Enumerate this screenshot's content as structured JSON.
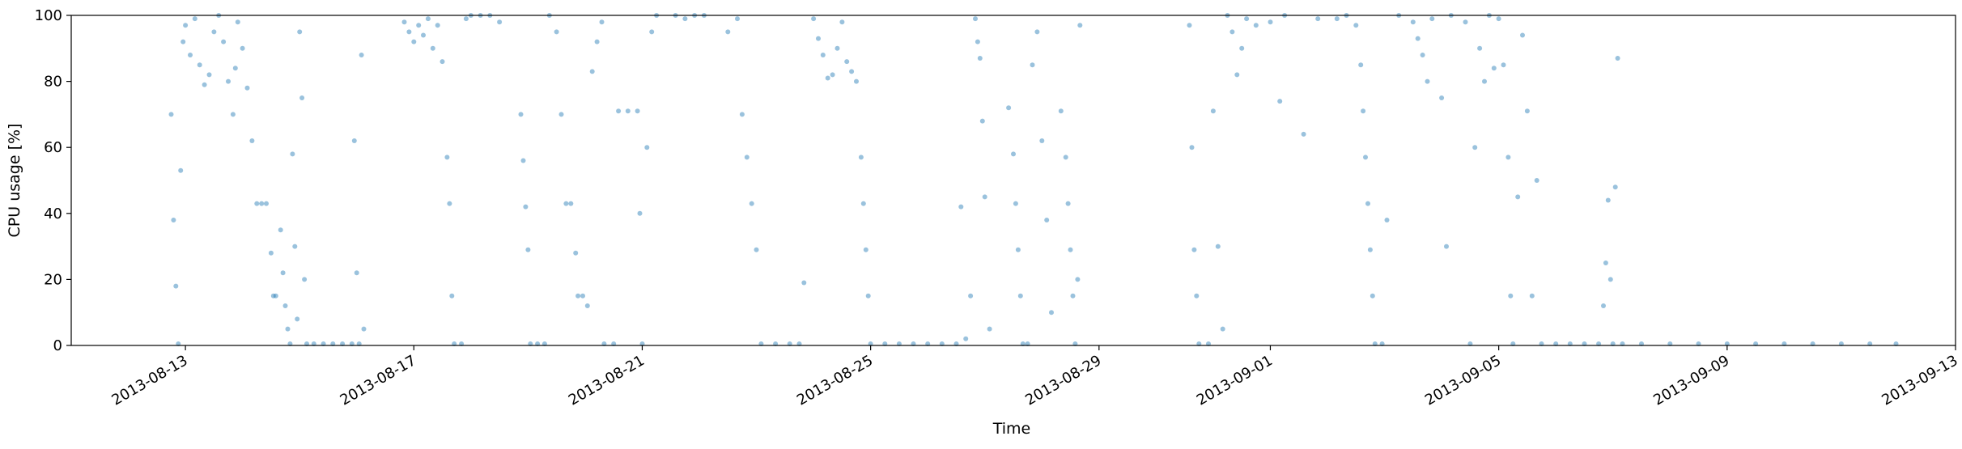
{
  "chart_data": {
    "type": "scatter",
    "title": "",
    "xlabel": "Time",
    "ylabel": "CPU usage [%]",
    "xlim": [
      "2013-08-11T00:00",
      "2013-09-13T00:00"
    ],
    "ylim": [
      0,
      100
    ],
    "grid": false,
    "legend": "none",
    "x_ticks": [
      "2013-08-13",
      "2013-08-17",
      "2013-08-21",
      "2013-08-25",
      "2013-08-29",
      "2013-09-01",
      "2013-09-05",
      "2013-09-09",
      "2013-09-13"
    ],
    "y_ticks": [
      0,
      20,
      40,
      60,
      80,
      100
    ],
    "marker_color": "#1f77b4",
    "marker_alpha": 0.45,
    "series": [
      {
        "values_note": "",
        "points": [
          [
            "2013-08-12T18:00",
            70
          ],
          [
            "2013-08-12T19:00",
            38
          ],
          [
            "2013-08-12T20:00",
            18
          ],
          [
            "2013-08-12T21:00",
            0.5
          ],
          [
            "2013-08-12T22:00",
            53
          ],
          [
            "2013-08-12T23:00",
            92
          ],
          [
            "2013-08-13T00:00",
            97
          ],
          [
            "2013-08-13T02:00",
            88
          ],
          [
            "2013-08-13T04:00",
            99
          ],
          [
            "2013-08-13T06:00",
            85
          ],
          [
            "2013-08-13T08:00",
            79
          ],
          [
            "2013-08-13T10:00",
            82
          ],
          [
            "2013-08-13T12:00",
            95
          ],
          [
            "2013-08-13T14:00",
            100
          ],
          [
            "2013-08-13T16:00",
            92
          ],
          [
            "2013-08-13T18:00",
            80
          ],
          [
            "2013-08-13T20:00",
            70
          ],
          [
            "2013-08-13T21:00",
            84
          ],
          [
            "2013-08-13T22:00",
            98
          ],
          [
            "2013-08-14T00:00",
            90
          ],
          [
            "2013-08-14T02:00",
            78
          ],
          [
            "2013-08-14T04:00",
            62
          ],
          [
            "2013-08-14T06:00",
            43
          ],
          [
            "2013-08-14T08:00",
            43
          ],
          [
            "2013-08-14T10:00",
            43
          ],
          [
            "2013-08-14T12:00",
            28
          ],
          [
            "2013-08-14T13:00",
            15
          ],
          [
            "2013-08-14T14:00",
            15
          ],
          [
            "2013-08-14T16:00",
            35
          ],
          [
            "2013-08-14T17:00",
            22
          ],
          [
            "2013-08-14T18:00",
            12
          ],
          [
            "2013-08-14T19:00",
            5
          ],
          [
            "2013-08-14T20:00",
            0.5
          ],
          [
            "2013-08-14T21:00",
            58
          ],
          [
            "2013-08-14T22:00",
            30
          ],
          [
            "2013-08-14T23:00",
            8
          ],
          [
            "2013-08-15T00:00",
            95
          ],
          [
            "2013-08-15T01:00",
            75
          ],
          [
            "2013-08-15T02:00",
            20
          ],
          [
            "2013-08-15T03:00",
            0.5
          ],
          [
            "2013-08-15T06:00",
            0.5
          ],
          [
            "2013-08-15T10:00",
            0.5
          ],
          [
            "2013-08-15T14:00",
            0.5
          ],
          [
            "2013-08-15T18:00",
            0.5
          ],
          [
            "2013-08-15T22:00",
            0.5
          ],
          [
            "2013-08-16T01:00",
            0.5
          ],
          [
            "2013-08-15T23:00",
            62
          ],
          [
            "2013-08-16T00:00",
            22
          ],
          [
            "2013-08-16T02:00",
            88
          ],
          [
            "2013-08-16T03:00",
            5
          ],
          [
            "2013-08-16T20:00",
            98
          ],
          [
            "2013-08-16T22:00",
            95
          ],
          [
            "2013-08-17T00:00",
            92
          ],
          [
            "2013-08-17T02:00",
            97
          ],
          [
            "2013-08-17T04:00",
            94
          ],
          [
            "2013-08-17T06:00",
            99
          ],
          [
            "2013-08-17T08:00",
            90
          ],
          [
            "2013-08-17T10:00",
            97
          ],
          [
            "2013-08-17T12:00",
            86
          ],
          [
            "2013-08-17T14:00",
            57
          ],
          [
            "2013-08-17T15:00",
            43
          ],
          [
            "2013-08-17T16:00",
            15
          ],
          [
            "2013-08-17T17:00",
            0.5
          ],
          [
            "2013-08-17T20:00",
            0.5
          ],
          [
            "2013-08-17T22:00",
            99
          ],
          [
            "2013-08-18T00:00",
            100
          ],
          [
            "2013-08-18T04:00",
            100
          ],
          [
            "2013-08-18T08:00",
            100
          ],
          [
            "2013-08-18T12:00",
            98
          ],
          [
            "2013-08-18T21:00",
            70
          ],
          [
            "2013-08-18T22:00",
            56
          ],
          [
            "2013-08-18T23:00",
            42
          ],
          [
            "2013-08-19T00:00",
            29
          ],
          [
            "2013-08-19T01:00",
            0.5
          ],
          [
            "2013-08-19T04:00",
            0.5
          ],
          [
            "2013-08-19T07:00",
            0.5
          ],
          [
            "2013-08-19T09:00",
            100
          ],
          [
            "2013-08-19T12:00",
            95
          ],
          [
            "2013-08-19T14:00",
            70
          ],
          [
            "2013-08-19T16:00",
            43
          ],
          [
            "2013-08-19T18:00",
            43
          ],
          [
            "2013-08-19T20:00",
            28
          ],
          [
            "2013-08-19T21:00",
            15
          ],
          [
            "2013-08-19T23:00",
            15
          ],
          [
            "2013-08-20T01:00",
            12
          ],
          [
            "2013-08-20T03:00",
            83
          ],
          [
            "2013-08-20T05:00",
            92
          ],
          [
            "2013-08-20T07:00",
            98
          ],
          [
            "2013-08-20T08:00",
            0.5
          ],
          [
            "2013-08-20T12:00",
            0.5
          ],
          [
            "2013-08-20T14:00",
            71
          ],
          [
            "2013-08-20T18:00",
            71
          ],
          [
            "2013-08-20T22:00",
            71
          ],
          [
            "2013-08-20T23:00",
            40
          ],
          [
            "2013-08-21T00:00",
            0.5
          ],
          [
            "2013-08-21T02:00",
            60
          ],
          [
            "2013-08-21T04:00",
            95
          ],
          [
            "2013-08-21T06:00",
            100
          ],
          [
            "2013-08-21T14:00",
            100
          ],
          [
            "2013-08-21T18:00",
            99
          ],
          [
            "2013-08-21T22:00",
            100
          ],
          [
            "2013-08-22T02:00",
            100
          ],
          [
            "2013-08-22T12:00",
            95
          ],
          [
            "2013-08-22T16:00",
            99
          ],
          [
            "2013-08-22T18:00",
            70
          ],
          [
            "2013-08-22T20:00",
            57
          ],
          [
            "2013-08-22T22:00",
            43
          ],
          [
            "2013-08-23T00:00",
            29
          ],
          [
            "2013-08-23T02:00",
            0.5
          ],
          [
            "2013-08-23T08:00",
            0.5
          ],
          [
            "2013-08-23T14:00",
            0.5
          ],
          [
            "2013-08-23T18:00",
            0.5
          ],
          [
            "2013-08-23T20:00",
            19
          ],
          [
            "2013-08-24T00:00",
            99
          ],
          [
            "2013-08-24T02:00",
            93
          ],
          [
            "2013-08-24T04:00",
            88
          ],
          [
            "2013-08-24T06:00",
            81
          ],
          [
            "2013-08-24T08:00",
            82
          ],
          [
            "2013-08-24T10:00",
            90
          ],
          [
            "2013-08-24T12:00",
            98
          ],
          [
            "2013-08-24T14:00",
            86
          ],
          [
            "2013-08-24T16:00",
            83
          ],
          [
            "2013-08-24T18:00",
            80
          ],
          [
            "2013-08-24T20:00",
            57
          ],
          [
            "2013-08-24T21:00",
            43
          ],
          [
            "2013-08-24T22:00",
            29
          ],
          [
            "2013-08-24T23:00",
            15
          ],
          [
            "2013-08-25T00:00",
            0.5
          ],
          [
            "2013-08-25T06:00",
            0.5
          ],
          [
            "2013-08-25T12:00",
            0.5
          ],
          [
            "2013-08-25T18:00",
            0.5
          ],
          [
            "2013-08-26T00:00",
            0.5
          ],
          [
            "2013-08-26T06:00",
            0.5
          ],
          [
            "2013-08-26T12:00",
            0.5
          ],
          [
            "2013-08-26T14:00",
            42
          ],
          [
            "2013-08-26T16:00",
            2
          ],
          [
            "2013-08-26T18:00",
            15
          ],
          [
            "2013-08-26T20:00",
            99
          ],
          [
            "2013-08-26T21:00",
            92
          ],
          [
            "2013-08-26T22:00",
            87
          ],
          [
            "2013-08-26T23:00",
            68
          ],
          [
            "2013-08-27T00:00",
            45
          ],
          [
            "2013-08-27T02:00",
            5
          ],
          [
            "2013-08-27T10:00",
            72
          ],
          [
            "2013-08-27T12:00",
            58
          ],
          [
            "2013-08-27T13:00",
            43
          ],
          [
            "2013-08-27T14:00",
            29
          ],
          [
            "2013-08-27T15:00",
            15
          ],
          [
            "2013-08-27T16:00",
            0.5
          ],
          [
            "2013-08-27T18:00",
            0.5
          ],
          [
            "2013-08-27T20:00",
            85
          ],
          [
            "2013-08-27T22:00",
            95
          ],
          [
            "2013-08-28T00:00",
            62
          ],
          [
            "2013-08-28T02:00",
            38
          ],
          [
            "2013-08-28T04:00",
            10
          ],
          [
            "2013-08-28T08:00",
            71
          ],
          [
            "2013-08-28T10:00",
            57
          ],
          [
            "2013-08-28T11:00",
            43
          ],
          [
            "2013-08-28T12:00",
            29
          ],
          [
            "2013-08-28T13:00",
            15
          ],
          [
            "2013-08-28T14:00",
            0.5
          ],
          [
            "2013-08-28T15:00",
            20
          ],
          [
            "2013-08-28T16:00",
            97
          ],
          [
            "2013-08-30T14:00",
            97
          ],
          [
            "2013-08-30T15:00",
            60
          ],
          [
            "2013-08-30T16:00",
            29
          ],
          [
            "2013-08-30T17:00",
            15
          ],
          [
            "2013-08-30T18:00",
            0.5
          ],
          [
            "2013-08-30T22:00",
            0.5
          ],
          [
            "2013-08-31T00:00",
            71
          ],
          [
            "2013-08-31T02:00",
            30
          ],
          [
            "2013-08-31T04:00",
            5
          ],
          [
            "2013-08-31T06:00",
            100
          ],
          [
            "2013-08-31T08:00",
            95
          ],
          [
            "2013-08-31T10:00",
            82
          ],
          [
            "2013-08-31T12:00",
            90
          ],
          [
            "2013-08-31T14:00",
            99
          ],
          [
            "2013-08-31T18:00",
            97
          ],
          [
            "2013-09-01T00:00",
            98
          ],
          [
            "2013-09-01T04:00",
            74
          ],
          [
            "2013-09-01T06:00",
            100
          ],
          [
            "2013-09-01T14:00",
            64
          ],
          [
            "2013-09-01T20:00",
            99
          ],
          [
            "2013-09-02T04:00",
            99
          ],
          [
            "2013-09-02T08:00",
            100
          ],
          [
            "2013-09-02T12:00",
            97
          ],
          [
            "2013-09-02T14:00",
            85
          ],
          [
            "2013-09-02T15:00",
            71
          ],
          [
            "2013-09-02T16:00",
            57
          ],
          [
            "2013-09-02T17:00",
            43
          ],
          [
            "2013-09-02T18:00",
            29
          ],
          [
            "2013-09-02T19:00",
            15
          ],
          [
            "2013-09-02T20:00",
            0.5
          ],
          [
            "2013-09-02T23:00",
            0.5
          ],
          [
            "2013-09-03T01:00",
            38
          ],
          [
            "2013-09-03T06:00",
            100
          ],
          [
            "2013-09-03T12:00",
            98
          ],
          [
            "2013-09-03T14:00",
            93
          ],
          [
            "2013-09-03T16:00",
            88
          ],
          [
            "2013-09-03T18:00",
            80
          ],
          [
            "2013-09-03T20:00",
            99
          ],
          [
            "2013-09-04T00:00",
            75
          ],
          [
            "2013-09-04T02:00",
            30
          ],
          [
            "2013-09-04T04:00",
            100
          ],
          [
            "2013-09-04T10:00",
            98
          ],
          [
            "2013-09-04T12:00",
            0.5
          ],
          [
            "2013-09-04T14:00",
            60
          ],
          [
            "2013-09-04T16:00",
            90
          ],
          [
            "2013-09-04T18:00",
            80
          ],
          [
            "2013-09-04T20:00",
            100
          ],
          [
            "2013-09-04T22:00",
            84
          ],
          [
            "2013-09-05T00:00",
            99
          ],
          [
            "2013-09-05T02:00",
            85
          ],
          [
            "2013-09-05T04:00",
            57
          ],
          [
            "2013-09-05T05:00",
            15
          ],
          [
            "2013-09-05T06:00",
            0.5
          ],
          [
            "2013-09-05T08:00",
            45
          ],
          [
            "2013-09-05T10:00",
            94
          ],
          [
            "2013-09-05T12:00",
            71
          ],
          [
            "2013-09-05T14:00",
            15
          ],
          [
            "2013-09-05T16:00",
            50
          ],
          [
            "2013-09-05T18:00",
            0.5
          ],
          [
            "2013-09-06T00:00",
            0.5
          ],
          [
            "2013-09-06T06:00",
            0.5
          ],
          [
            "2013-09-06T12:00",
            0.5
          ],
          [
            "2013-09-06T18:00",
            0.5
          ],
          [
            "2013-09-06T20:00",
            12
          ],
          [
            "2013-09-06T21:00",
            25
          ],
          [
            "2013-09-06T22:00",
            44
          ],
          [
            "2013-09-06T23:00",
            20
          ],
          [
            "2013-09-07T00:00",
            0.5
          ],
          [
            "2013-09-07T01:00",
            48
          ],
          [
            "2013-09-07T02:00",
            87
          ],
          [
            "2013-09-07T04:00",
            0.5
          ],
          [
            "2013-09-07T12:00",
            0.5
          ],
          [
            "2013-09-08T00:00",
            0.5
          ],
          [
            "2013-09-08T12:00",
            0.5
          ],
          [
            "2013-09-09T00:00",
            0.5
          ],
          [
            "2013-09-09T12:00",
            0.5
          ],
          [
            "2013-09-10T00:00",
            0.5
          ],
          [
            "2013-09-10T12:00",
            0.5
          ],
          [
            "2013-09-11T00:00",
            0.5
          ],
          [
            "2013-09-11T12:00",
            0.5
          ],
          [
            "2013-09-11T23:00",
            0.5
          ]
        ]
      }
    ]
  }
}
